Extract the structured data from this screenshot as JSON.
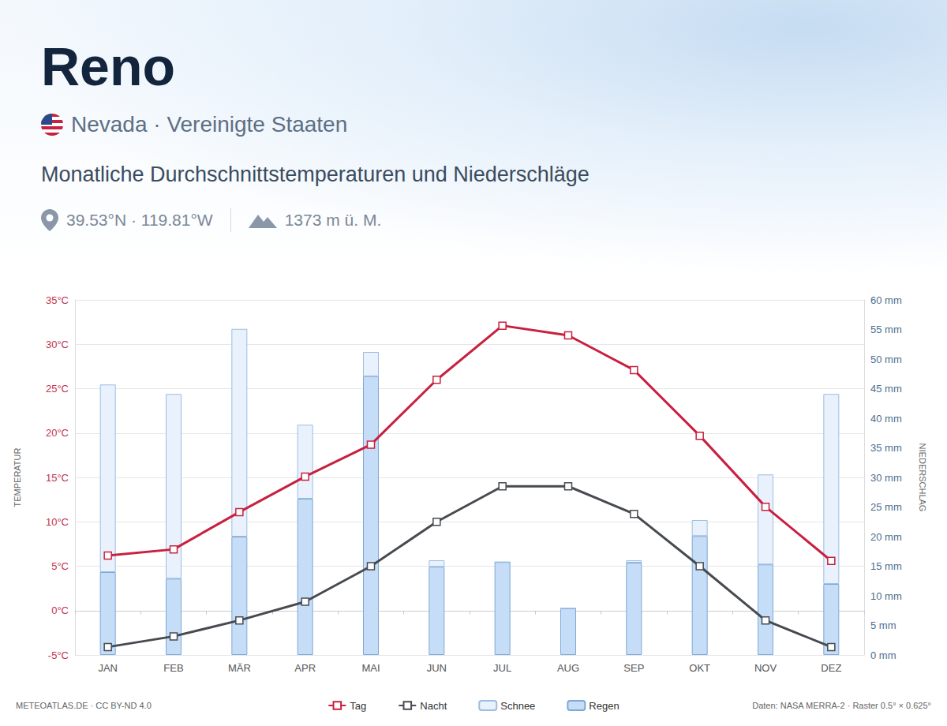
{
  "chart_data": {
    "type": "climate",
    "title": "Reno",
    "subtitle": "Nevada · Vereinigte Staaten",
    "annotations": {
      "heading": "Monatliche Durchschnittstemperaturen und Niederschläge",
      "location": "39.53°N · 119.81°W",
      "elevation": "1373 m ü. M.",
      "credit": "METEOATLAS.DE · CC BY-ND 4.0",
      "source": "Daten: NASA MERRA-2 · Raster 0.5° × 0.625°"
    },
    "ylabel": "TEMPERATUR",
    "y2label": "NIEDERSCHLAG",
    "categories": [
      "JAN",
      "FEB",
      "MÄR",
      "APR",
      "MAI",
      "JUN",
      "JUL",
      "AUG",
      "SEP",
      "OKT",
      "NOV",
      "DEZ"
    ],
    "series": [
      {
        "name": "Tag",
        "type": "line",
        "color": "#c8203f",
        "marker": "square",
        "line_style": "solid",
        "values": [
          6.2,
          6.9,
          11.1,
          15.1,
          18.7,
          26.0,
          32.1,
          31.0,
          27.1,
          19.7,
          11.7,
          5.6
        ]
      },
      {
        "name": "Nacht",
        "type": "line",
        "color": "#474b50",
        "marker": "square",
        "line_style": "solid",
        "values": [
          -4.1,
          -2.9,
          -1.1,
          1.0,
          5.0,
          10.0,
          14.0,
          14.0,
          10.9,
          5.0,
          -1.1,
          -4.1
        ]
      },
      {
        "name": "Regen",
        "type": "bar",
        "axis": "y2",
        "color": "#c6ddf7",
        "values": [
          14.0,
          12.9,
          20.0,
          26.4,
          47.1,
          14.9,
          15.7,
          7.9,
          15.6,
          20.1,
          15.3,
          12.0
        ]
      },
      {
        "name": "Schnee",
        "type": "bar",
        "axis": "y2",
        "color": "#e9f2fc",
        "values": [
          31.7,
          31.2,
          35.1,
          12.5,
          4.1,
          1.1,
          0,
          0,
          0.4,
          2.7,
          15.2,
          32.1
        ]
      }
    ],
    "stacked": true,
    "ylim": [
      -5,
      35
    ],
    "yticks": [
      {
        "value": -5,
        "label": "-5°C"
      },
      {
        "value": 0,
        "label": "0°C"
      },
      {
        "value": 5,
        "label": "5°C"
      },
      {
        "value": 10,
        "label": "10°C"
      },
      {
        "value": 15,
        "label": "15°C"
      },
      {
        "value": 20,
        "label": "20°C"
      },
      {
        "value": 25,
        "label": "25°C"
      },
      {
        "value": 30,
        "label": "30°C"
      },
      {
        "value": 35,
        "label": "35°C"
      }
    ],
    "y2lim": [
      0,
      60
    ],
    "y2ticks": [
      {
        "value": 0,
        "label": "0 mm"
      },
      {
        "value": 5,
        "label": "5 mm"
      },
      {
        "value": 10,
        "label": "10 mm"
      },
      {
        "value": 15,
        "label": "15 mm"
      },
      {
        "value": 20,
        "label": "20 mm"
      },
      {
        "value": 25,
        "label": "25 mm"
      },
      {
        "value": 30,
        "label": "30 mm"
      },
      {
        "value": 35,
        "label": "35 mm"
      },
      {
        "value": 40,
        "label": "40 mm"
      },
      {
        "value": 45,
        "label": "45 mm"
      },
      {
        "value": 50,
        "label": "50 mm"
      },
      {
        "value": 55,
        "label": "55 mm"
      },
      {
        "value": 60,
        "label": "60 mm"
      }
    ],
    "grid": true,
    "legend": "bottom",
    "data_labels": false
  }
}
